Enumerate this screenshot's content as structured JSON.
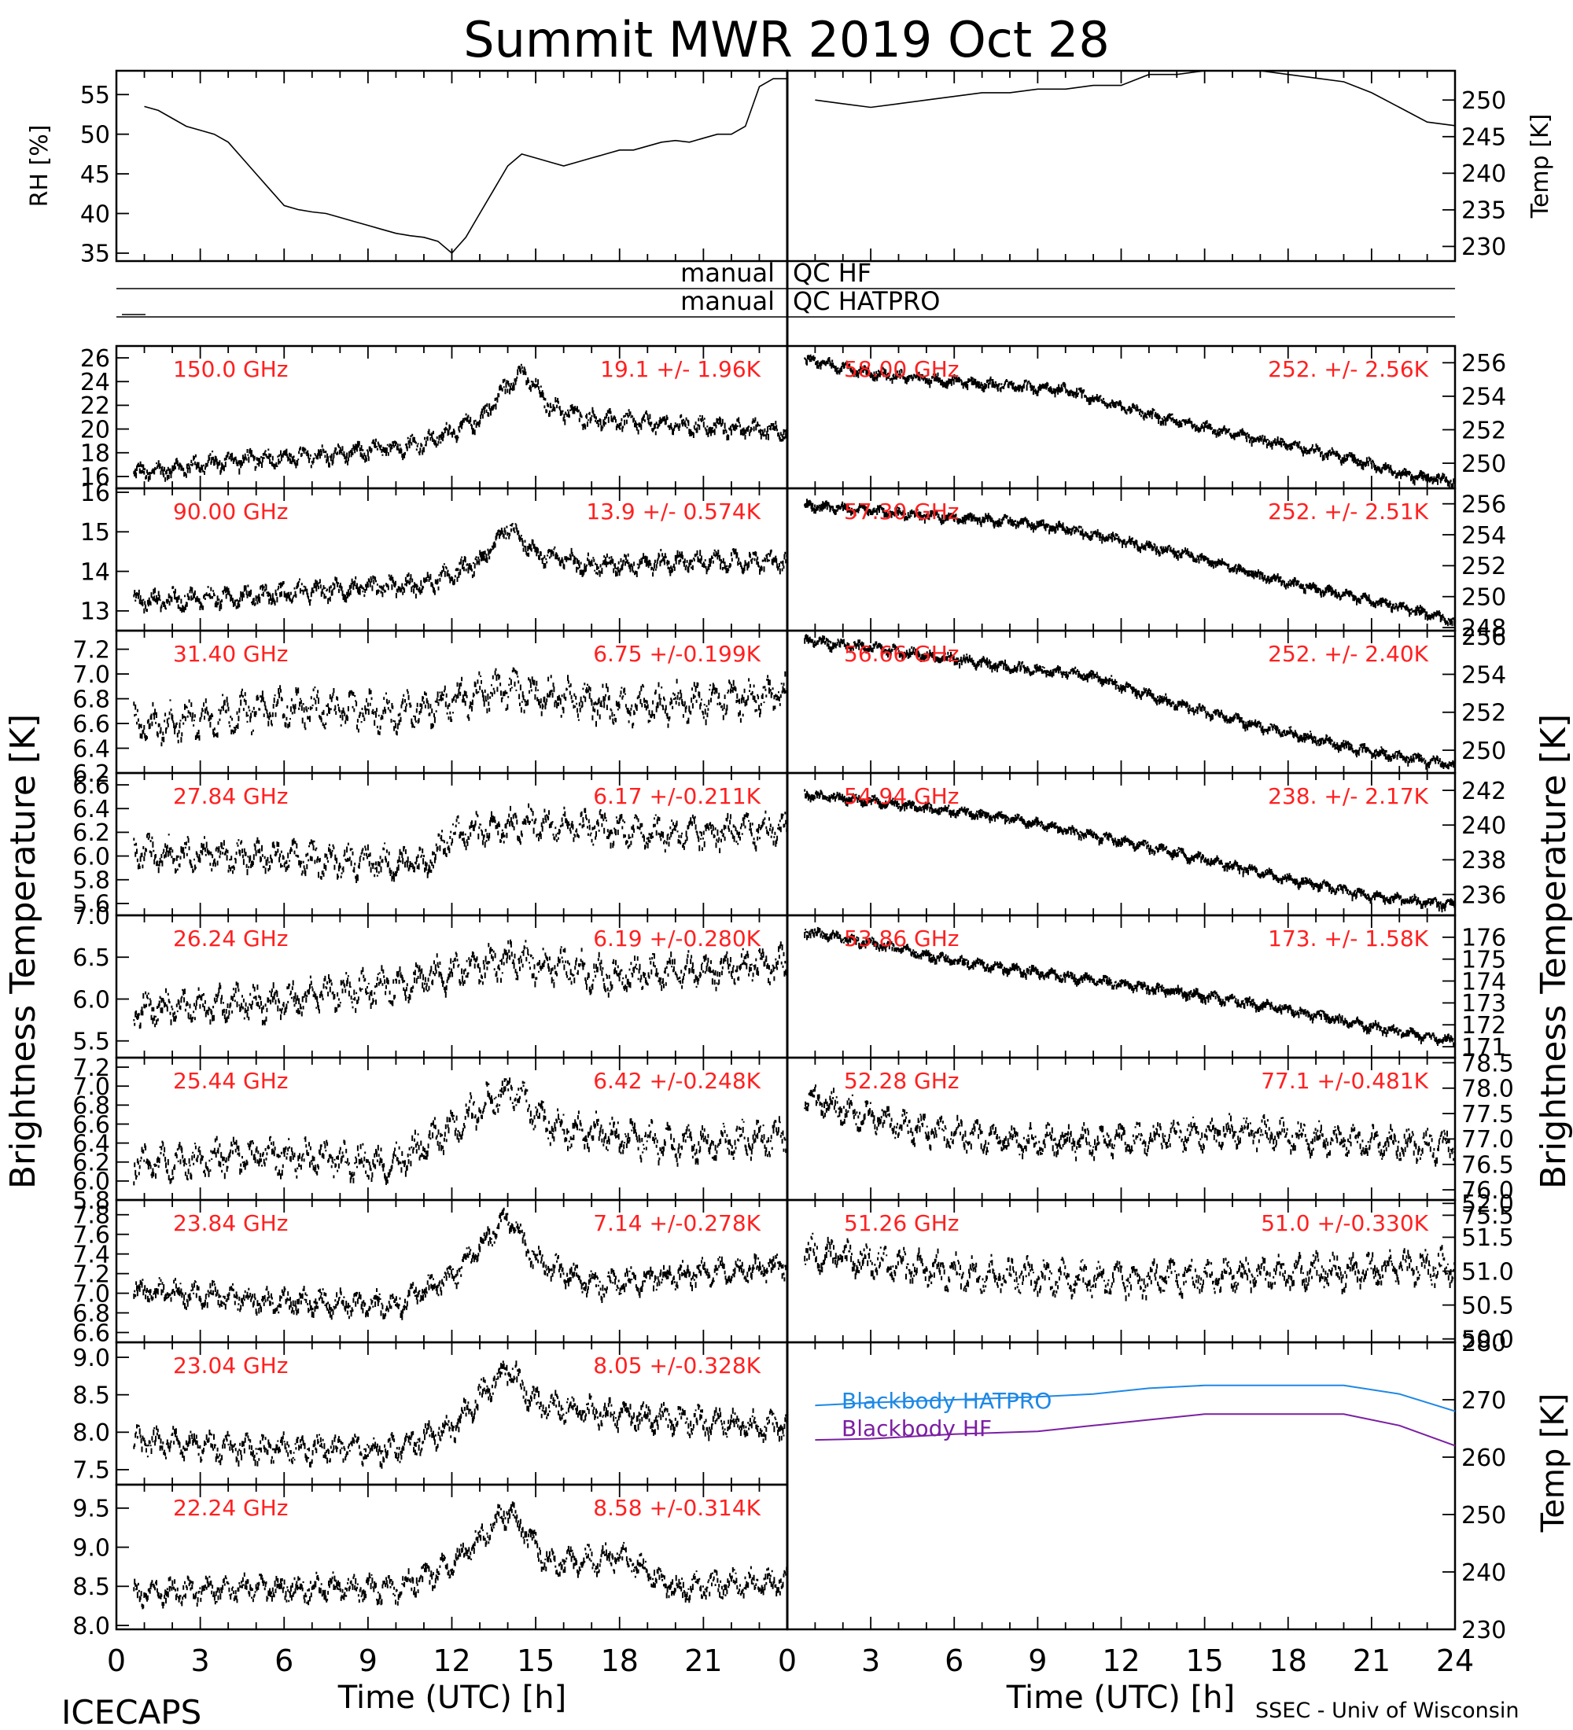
{
  "title": "Summit MWR 2019 Oct 28",
  "footer": {
    "left": "ICECAPS",
    "right": "SSEC - Univ of Wisconsin"
  },
  "x_axis": {
    "label": "Time (UTC) [h]",
    "range": [
      0,
      24
    ],
    "ticks": [
      "0",
      "3",
      "6",
      "9",
      "12",
      "15",
      "18",
      "21",
      "24"
    ]
  },
  "side_labels": {
    "left": "Brightness Temperature [K]",
    "right": "Brightness Temperature [K]"
  },
  "qc": {
    "hf_left": "manual",
    "hf_right": "QC HF",
    "hatpro_left": "manual",
    "hatpro_right": "QC HATPRO"
  },
  "colors": {
    "annotation": "#ff2020",
    "hatpro_line": "#1e88e5",
    "hf_line": "#7b1fa2",
    "trace": "#000000"
  },
  "chart_data": [
    {
      "type": "line",
      "id": "rh",
      "ylabel": "RH [%]",
      "ylim": [
        34,
        58
      ],
      "ticks": [
        35,
        40,
        45,
        50,
        55
      ],
      "series": [
        {
          "x": [
            1,
            1.5,
            2,
            2.5,
            3,
            3.5,
            4,
            4.5,
            5,
            5.5,
            6,
            6.5,
            7,
            7.5,
            8,
            8.5,
            9,
            9.5,
            10,
            10.5,
            11,
            11.5,
            12,
            12.5,
            13,
            13.5,
            14,
            14.5,
            15,
            15.5,
            16,
            16.5,
            17,
            17.5,
            18,
            18.5,
            19,
            19.5,
            20,
            20.5,
            21,
            21.5,
            22,
            22.5,
            23,
            23.5,
            24
          ],
          "y": [
            53.5,
            53,
            52,
            51,
            50.5,
            50,
            49,
            47,
            45,
            43,
            41,
            40.5,
            40.2,
            40,
            39.5,
            39,
            38.5,
            38,
            37.5,
            37.2,
            37,
            36.5,
            35,
            37,
            40,
            43,
            46,
            47.5,
            47,
            46.5,
            46,
            46.5,
            47,
            47.5,
            48,
            48,
            48.5,
            49,
            49.2,
            49,
            49.5,
            50,
            50,
            51,
            56,
            57,
            57
          ]
        }
      ]
    },
    {
      "type": "line",
      "id": "temp",
      "ylabel": "Temp [K]",
      "ylim": [
        228,
        254
      ],
      "ticks": [
        230,
        235,
        240,
        245,
        250
      ],
      "series": [
        {
          "x": [
            1,
            2,
            3,
            4,
            5,
            6,
            7,
            8,
            9,
            10,
            11,
            12,
            13,
            14,
            15,
            16,
            17,
            18,
            19,
            20,
            21,
            22,
            23,
            24
          ],
          "y": [
            250,
            249.5,
            249,
            249.5,
            250,
            250.5,
            251,
            251,
            251.5,
            251.5,
            252,
            252,
            253.5,
            253.5,
            254,
            254,
            254,
            253.5,
            253,
            252.5,
            251,
            249,
            247,
            246.5
          ]
        }
      ]
    },
    {
      "type": "scatter",
      "id": "ch150",
      "freq_label": "150.0 GHz",
      "stat_label": "19.1 +/-  1.96K",
      "ylim": [
        15,
        27
      ],
      "ticks": [
        16,
        18,
        20,
        22,
        24,
        26
      ],
      "trend": [
        [
          1,
          16.5
        ],
        [
          4,
          17.5
        ],
        [
          8,
          18
        ],
        [
          11,
          19
        ],
        [
          13,
          21
        ],
        [
          14,
          24
        ],
        [
          14.5,
          25
        ],
        [
          15.5,
          22
        ],
        [
          17,
          21
        ],
        [
          20,
          20.5
        ],
        [
          24,
          20
        ]
      ],
      "noise": 0.9
    },
    {
      "type": "scatter",
      "id": "ch90",
      "freq_label": "90.00 GHz",
      "stat_label": "13.9 +/- 0.574K",
      "ylim": [
        12.5,
        16.1
      ],
      "ticks": [
        13,
        14,
        15,
        16
      ],
      "trend": [
        [
          1,
          13.3
        ],
        [
          4,
          13.4
        ],
        [
          8,
          13.6
        ],
        [
          11,
          13.7
        ],
        [
          13,
          14.3
        ],
        [
          14,
          15.2
        ],
        [
          15,
          14.5
        ],
        [
          17,
          14.2
        ],
        [
          20,
          14.3
        ],
        [
          24,
          14.3
        ]
      ],
      "noise": 0.3
    },
    {
      "type": "scatter",
      "id": "ch31",
      "freq_label": "31.40 GHz",
      "stat_label": "6.75 +/-0.199K",
      "ylim": [
        6.2,
        7.35
      ],
      "ticks": [
        "6.2",
        "6.4",
        "6.6",
        "6.8",
        "7.0",
        "7.2"
      ],
      "trend": [
        [
          1,
          6.6
        ],
        [
          6,
          6.75
        ],
        [
          10,
          6.7
        ],
        [
          14,
          6.9
        ],
        [
          18,
          6.75
        ],
        [
          24,
          6.85
        ]
      ],
      "noise": 0.18
    },
    {
      "type": "scatter",
      "id": "ch27",
      "freq_label": "27.84 GHz",
      "stat_label": "6.17 +/-0.211K",
      "ylim": [
        5.5,
        6.7
      ],
      "ticks": [
        "5.6",
        "5.8",
        "6.0",
        "6.2",
        "6.4",
        "6.6"
      ],
      "trend": [
        [
          1,
          6.05
        ],
        [
          6,
          6.0
        ],
        [
          11,
          5.95
        ],
        [
          12,
          6.2
        ],
        [
          15,
          6.3
        ],
        [
          20,
          6.2
        ],
        [
          24,
          6.25
        ]
      ],
      "noise": 0.16
    },
    {
      "type": "scatter",
      "id": "ch26",
      "freq_label": "26.24 GHz",
      "stat_label": "6.19 +/-0.280K",
      "ylim": [
        5.3,
        7.0
      ],
      "ticks": [
        "5.5",
        "6.0",
        "6.5",
        "7.0"
      ],
      "trend": [
        [
          1,
          5.9
        ],
        [
          6,
          6.0
        ],
        [
          10,
          6.2
        ],
        [
          14,
          6.5
        ],
        [
          18,
          6.3
        ],
        [
          24,
          6.45
        ]
      ],
      "noise": 0.25
    },
    {
      "type": "scatter",
      "id": "ch25",
      "freq_label": "25.44 GHz",
      "stat_label": "6.42 +/-0.248K",
      "ylim": [
        5.8,
        7.3
      ],
      "ticks": [
        "5.8",
        "6.0",
        "6.2",
        "6.4",
        "6.6",
        "6.8",
        "7.0",
        "7.2"
      ],
      "trend": [
        [
          1,
          6.2
        ],
        [
          5,
          6.3
        ],
        [
          10,
          6.2
        ],
        [
          13,
          6.8
        ],
        [
          14,
          7.0
        ],
        [
          15.5,
          6.6
        ],
        [
          20,
          6.4
        ],
        [
          24,
          6.5
        ]
      ],
      "noise": 0.22
    },
    {
      "type": "scatter",
      "id": "ch23_8",
      "freq_label": "23.84 GHz",
      "stat_label": "7.14 +/-0.278K",
      "ylim": [
        6.5,
        7.95
      ],
      "ticks": [
        "6.6",
        "6.8",
        "7.0",
        "7.2",
        "7.4",
        "7.6",
        "7.8"
      ],
      "trend": [
        [
          1,
          7.05
        ],
        [
          5,
          6.95
        ],
        [
          10,
          6.9
        ],
        [
          12,
          7.2
        ],
        [
          14,
          7.8
        ],
        [
          15,
          7.35
        ],
        [
          17,
          7.1
        ],
        [
          20,
          7.2
        ],
        [
          24,
          7.3
        ]
      ],
      "noise": 0.15
    },
    {
      "type": "scatter",
      "id": "ch23_0",
      "freq_label": "23.04 GHz",
      "stat_label": "8.05 +/-0.328K",
      "ylim": [
        7.3,
        9.2
      ],
      "ticks": [
        "7.5",
        "8.0",
        "8.5",
        "9.0"
      ],
      "trend": [
        [
          1,
          7.9
        ],
        [
          5,
          7.8
        ],
        [
          10,
          7.8
        ],
        [
          12,
          8.1
        ],
        [
          14,
          8.9
        ],
        [
          15,
          8.4
        ],
        [
          17,
          8.3
        ],
        [
          20,
          8.2
        ],
        [
          24,
          8.1
        ]
      ],
      "noise": 0.22
    },
    {
      "type": "scatter",
      "id": "ch22",
      "freq_label": "22.24 GHz",
      "stat_label": "8.58 +/-0.314K",
      "ylim": [
        7.95,
        9.8
      ],
      "ticks": [
        "8.0",
        "8.5",
        "9.0",
        "9.5"
      ],
      "trend": [
        [
          1,
          8.45
        ],
        [
          5,
          8.5
        ],
        [
          10,
          8.5
        ],
        [
          12,
          8.8
        ],
        [
          14,
          9.5
        ],
        [
          15.5,
          8.8
        ],
        [
          18,
          8.9
        ],
        [
          20,
          8.5
        ],
        [
          24,
          8.6
        ]
      ],
      "noise": 0.2
    },
    {
      "type": "scatter",
      "id": "ch58",
      "freq_label": "58.00 GHz",
      "stat_label": "252. +/- 2.56K",
      "ylim": [
        248.5,
        257
      ],
      "ticks": [
        250,
        252,
        254,
        256
      ],
      "trend": [
        [
          0,
          256.5
        ],
        [
          3,
          255.5
        ],
        [
          6,
          255
        ],
        [
          10,
          254.5
        ],
        [
          13,
          253
        ],
        [
          17,
          251.5
        ],
        [
          20,
          250.5
        ],
        [
          22,
          249.5
        ],
        [
          24,
          249
        ]
      ],
      "noise": 0.35
    },
    {
      "type": "scatter",
      "id": "ch57",
      "freq_label": "57.30 GHz",
      "stat_label": "252. +/- 2.51K",
      "ylim": [
        247.8,
        257
      ],
      "ticks": [
        248,
        250,
        252,
        254,
        256
      ],
      "trend": [
        [
          1,
          256
        ],
        [
          4,
          255.5
        ],
        [
          8,
          255
        ],
        [
          10,
          254.5
        ],
        [
          14,
          253
        ],
        [
          18,
          251
        ],
        [
          22,
          249.5
        ],
        [
          24,
          248.5
        ]
      ],
      "noise": 0.35
    },
    {
      "type": "scatter",
      "id": "ch56",
      "freq_label": "56.66 GHz",
      "stat_label": "252. +/- 2.40K",
      "ylim": [
        248.8,
        256.3
      ],
      "ticks": [
        250,
        252,
        254,
        256
      ],
      "trend": [
        [
          0,
          256
        ],
        [
          3,
          255.5
        ],
        [
          8,
          254.5
        ],
        [
          11,
          254
        ],
        [
          14,
          252.5
        ],
        [
          18,
          251
        ],
        [
          21,
          250
        ],
        [
          24,
          249.3
        ]
      ],
      "noise": 0.3
    },
    {
      "type": "scatter",
      "id": "ch54",
      "freq_label": "54.94 GHz",
      "stat_label": "238. +/- 2.17K",
      "ylim": [
        234.8,
        243
      ],
      "ticks": [
        236,
        238,
        240,
        242
      ],
      "trend": [
        [
          0,
          242
        ],
        [
          3,
          241.5
        ],
        [
          8,
          240.5
        ],
        [
          11,
          239.5
        ],
        [
          14,
          238.5
        ],
        [
          18,
          237
        ],
        [
          21,
          236
        ],
        [
          24,
          235.5
        ]
      ],
      "noise": 0.3
    },
    {
      "type": "scatter",
      "id": "ch53",
      "freq_label": "53.86 GHz",
      "stat_label": "173. +/- 1.58K",
      "ylim": [
        170.5,
        177
      ],
      "ticks": [
        171,
        172,
        173,
        174,
        175,
        176
      ],
      "trend": [
        [
          0,
          176.5
        ],
        [
          3,
          175.8
        ],
        [
          6,
          175
        ],
        [
          10,
          174.3
        ],
        [
          14,
          173.6
        ],
        [
          18,
          172.8
        ],
        [
          21,
          172
        ],
        [
          24,
          171.3
        ]
      ],
      "noise": 0.25
    },
    {
      "type": "scatter",
      "id": "ch52",
      "freq_label": "52.28 GHz",
      "stat_label": "77.1 +/-0.481K",
      "ylim": [
        75.8,
        78.6
      ],
      "ticks": [
        "75.5",
        "76.0",
        "76.5",
        "77.0",
        "77.5",
        "78.0",
        "78.5"
      ],
      "trend": [
        [
          1,
          77.8
        ],
        [
          4,
          77.3
        ],
        [
          8,
          77.0
        ],
        [
          12,
          77.0
        ],
        [
          16,
          77.2
        ],
        [
          20,
          77.0
        ],
        [
          24,
          76.9
        ]
      ],
      "noise": 0.35
    },
    {
      "type": "scatter",
      "id": "ch51",
      "freq_label": "51.26 GHz",
      "stat_label": "51.0 +/-0.330K",
      "ylim": [
        49.95,
        52.05
      ],
      "ticks": [
        "50.0",
        "50.5",
        "51.0",
        "51.5",
        "52.0"
      ],
      "trend": [
        [
          1,
          51.3
        ],
        [
          6,
          51.0
        ],
        [
          12,
          50.9
        ],
        [
          18,
          51.0
        ],
        [
          24,
          51.1
        ]
      ],
      "noise": 0.3
    },
    {
      "type": "line",
      "id": "blackbody",
      "ylabel": "Temp [K]",
      "ylim": [
        230,
        280
      ],
      "ticks": [
        230,
        240,
        250,
        260,
        270,
        280
      ],
      "series": [
        {
          "name": "Blackbody HATPRO",
          "x": [
            1,
            3,
            6,
            9,
            11,
            13,
            15,
            18,
            20,
            22,
            24
          ],
          "y": [
            269,
            269.5,
            270,
            270.5,
            271,
            272,
            272.5,
            272.5,
            272.5,
            271,
            268
          ]
        },
        {
          "name": "Blackbody HF",
          "x": [
            1,
            3,
            6,
            9,
            11,
            13,
            15,
            18,
            20,
            22,
            24
          ],
          "y": [
            263,
            263.2,
            264,
            264.5,
            265.5,
            266.5,
            267.5,
            267.5,
            267.5,
            265.5,
            262
          ]
        }
      ]
    }
  ]
}
